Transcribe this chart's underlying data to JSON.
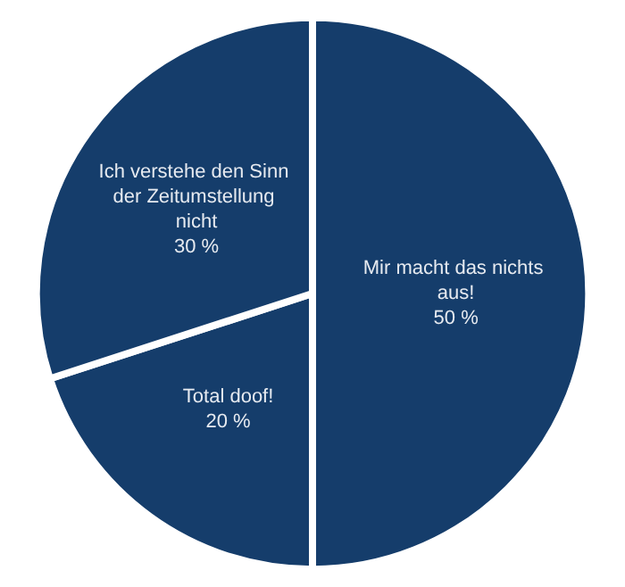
{
  "chart_data": {
    "type": "pie",
    "categories": [
      "Mir macht das nichts aus!",
      "Total doof!",
      "Ich verstehe den Sinn der Zeitumstellung nicht"
    ],
    "values": [
      50,
      20,
      30
    ],
    "colors": [
      "#153d6b",
      "#153d6b",
      "#153d6b"
    ],
    "value_labels": [
      "50 %",
      "20 %",
      "30 %"
    ]
  }
}
